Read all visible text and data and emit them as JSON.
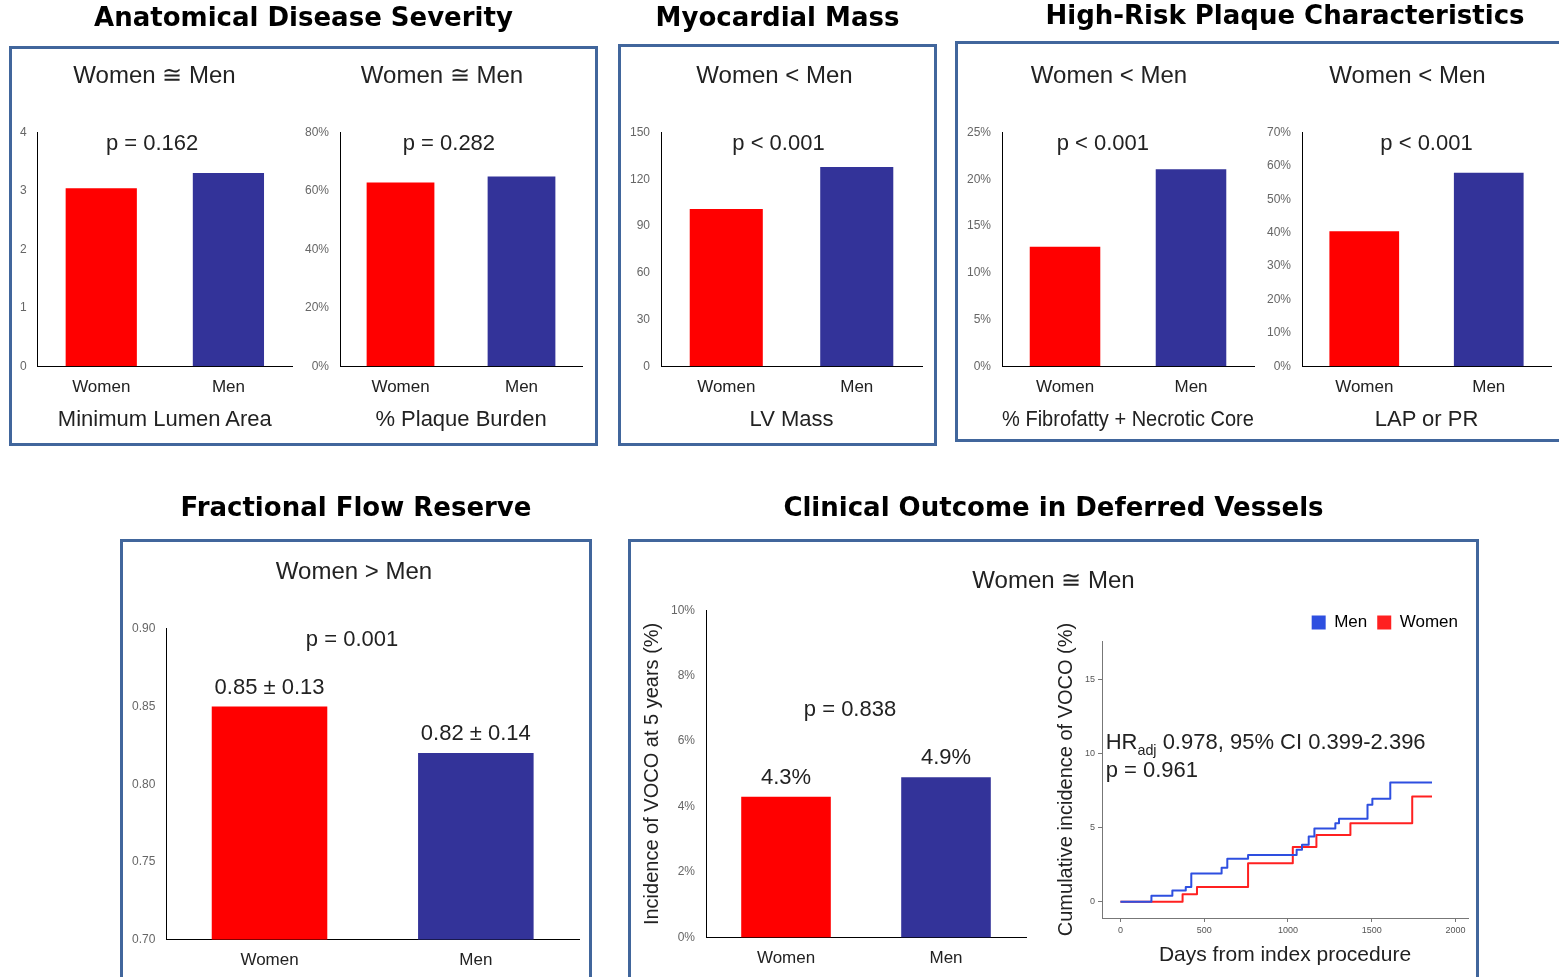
{
  "chart_data": [
    {
      "type": "bar",
      "title": "Anatomical Disease Severity",
      "subtitle": "Women ≅ Men",
      "categories": [
        "Women",
        "Men"
      ],
      "values": [
        3.05,
        3.31
      ],
      "colors": [
        "#ff0000",
        "#333399"
      ],
      "ylim": [
        0,
        4
      ],
      "yticks": [
        0,
        1,
        2,
        3,
        4
      ],
      "xlabel": "Minimum Lumen Area",
      "annotations": [
        "p = 0.162"
      ]
    },
    {
      "type": "bar",
      "subtitle": "Women ≅ Men",
      "categories": [
        "Women",
        "Men"
      ],
      "values": [
        63,
        65
      ],
      "colors": [
        "#ff0000",
        "#333399"
      ],
      "ylim": [
        0,
        80
      ],
      "yticks": [
        {
          "value": 0,
          "label": "0%"
        },
        {
          "value": 20,
          "label": "20%"
        },
        {
          "value": 40,
          "label": "40%"
        },
        {
          "value": 60,
          "label": "60%"
        },
        {
          "value": 80,
          "label": "80%"
        }
      ],
      "xlabel": "% Plaque Burden",
      "annotations": [
        "p = 0.282"
      ]
    },
    {
      "type": "bar",
      "title": "Myocardial Mass",
      "subtitle": "Women < Men",
      "categories": [
        "Women",
        "Men"
      ],
      "values": [
        101,
        128
      ],
      "colors": [
        "#ff0000",
        "#333399"
      ],
      "ylim": [
        0,
        150
      ],
      "yticks": [
        0,
        30,
        60,
        90,
        120,
        150
      ],
      "xlabel": "LV Mass",
      "annotations": [
        "p < 0.001"
      ]
    },
    {
      "type": "bar",
      "title": "High-Risk Plaque Characteristics",
      "subtitle": "Women < Men",
      "categories": [
        "Women",
        "Men"
      ],
      "values": [
        12.8,
        21.1
      ],
      "colors": [
        "#ff0000",
        "#333399"
      ],
      "ylim": [
        0,
        25
      ],
      "yticks": [
        {
          "value": 0,
          "label": "0%"
        },
        {
          "value": 5,
          "label": "5%"
        },
        {
          "value": 10,
          "label": "10%"
        },
        {
          "value": 15,
          "label": "15%"
        },
        {
          "value": 20,
          "label": "20%"
        },
        {
          "value": 25,
          "label": "25%"
        }
      ],
      "xlabel": "% Fibrofatty + Necrotic Core",
      "annotations": [
        "p < 0.001"
      ]
    },
    {
      "type": "bar",
      "subtitle": "Women < Men",
      "categories": [
        "Women",
        "Men"
      ],
      "values": [
        40.5,
        58
      ],
      "colors": [
        "#ff0000",
        "#333399"
      ],
      "ylim": [
        0,
        70
      ],
      "yticks": [
        {
          "value": 0,
          "label": "0%"
        },
        {
          "value": 10,
          "label": "10%"
        },
        {
          "value": 20,
          "label": "20%"
        },
        {
          "value": 30,
          "label": "30%"
        },
        {
          "value": 40,
          "label": "40%"
        },
        {
          "value": 50,
          "label": "50%"
        },
        {
          "value": 60,
          "label": "60%"
        },
        {
          "value": 70,
          "label": "70%"
        }
      ],
      "xlabel": "LAP or PR",
      "annotations": [
        "p < 0.001"
      ]
    },
    {
      "type": "bar",
      "title": "Fractional Flow Reserve",
      "subtitle": "Women > Men",
      "categories": [
        "Women",
        "Men"
      ],
      "values": [
        0.85,
        0.82
      ],
      "colors": [
        "#ff0000",
        "#333399"
      ],
      "value_labels": [
        "0.85 ± 0.13",
        "0.82 ± 0.14"
      ],
      "ylim": [
        0.7,
        0.9
      ],
      "yticks": [
        {
          "value": 0.7,
          "label": "0.70"
        },
        0.75,
        {
          "value": 0.8,
          "label": "0.80"
        },
        0.85,
        {
          "value": 0.9,
          "label": "0.90"
        }
      ],
      "annotations": [
        "p = 0.001"
      ]
    },
    {
      "type": "bar",
      "title": "Clinical Outcome in Deferred Vessels",
      "subtitle": "Women ≅ Men",
      "categories": [
        "Women",
        "Men"
      ],
      "values": [
        4.3,
        4.9
      ],
      "colors": [
        "#ff0000",
        "#333399"
      ],
      "value_labels": [
        "4.3%",
        "4.9%"
      ],
      "ylim": [
        0,
        10
      ],
      "yticks": [
        {
          "value": 0,
          "label": "0%"
        },
        {
          "value": 2,
          "label": "2%"
        },
        {
          "value": 4,
          "label": "4%"
        },
        {
          "value": 6,
          "label": "6%"
        },
        {
          "value": 8,
          "label": "8%"
        },
        {
          "value": 10,
          "label": "10%"
        }
      ],
      "ylabel": "Incidence of VOCO at 5 years (%)",
      "annotations": [
        "p = 0.838"
      ]
    },
    {
      "type": "step",
      "xlabel": "Days from index procedure",
      "ylabel": "Cumulative incidence of VOCO (%)",
      "xlim": [
        -110,
        2075
      ],
      "ylim": [
        -1.1,
        17.6
      ],
      "xticks": [
        0,
        500,
        1000,
        1500,
        2000
      ],
      "yticks": [
        0,
        5,
        10,
        15
      ],
      "legend": "top right",
      "annotations": [
        "HR$_{adj}$ 0.978, 95% CI 0.399-2.396",
        "p = 0.961"
      ],
      "series": [
        {
          "name": "Men",
          "color": "#2e4fe0",
          "x": [
            0,
            185,
            310,
            390,
            423,
            604,
            638,
            762,
            1052,
            1084,
            1124,
            1158,
            1283,
            1305,
            1475,
            1504,
            1611,
            1860
          ],
          "values": [
            0,
            0.4,
            0.75,
            1.0,
            1.9,
            2.3,
            2.9,
            3.15,
            3.5,
            3.85,
            4.4,
            4.95,
            5.3,
            5.6,
            6.55,
            6.95,
            8.05,
            8.05
          ]
        },
        {
          "name": "Women",
          "color": "#ff2020",
          "x": [
            0,
            371,
            457,
            762,
            1029,
            1170,
            1373,
            1742,
            1860
          ],
          "values": [
            0,
            0.5,
            1.0,
            2.6,
            3.7,
            4.5,
            5.3,
            7.1,
            7.1
          ]
        }
      ]
    }
  ]
}
